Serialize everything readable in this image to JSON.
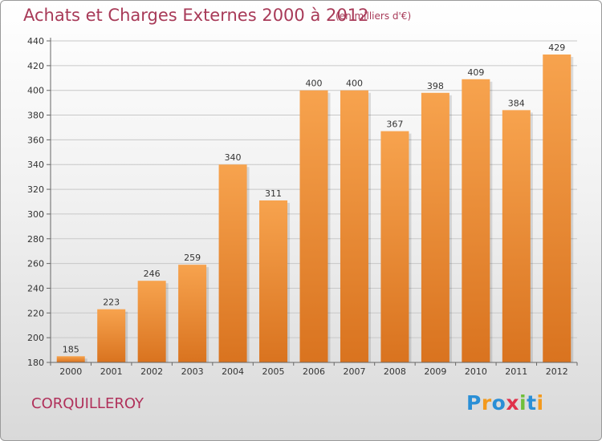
{
  "title": "Achats et Charges Externes 2000 à 2012",
  "subtitle": "(en milliers d'€)",
  "commune": "CORQUILLEROY",
  "logo": {
    "letters": [
      "P",
      "r",
      "o",
      "x",
      "i",
      "t",
      "i"
    ],
    "colors": [
      "#2a8fd6",
      "#f39a1e",
      "#2a8fd6",
      "#e0324b",
      "#6fbf3a",
      "#2a8fd6",
      "#f39a1e"
    ]
  },
  "colors": {
    "bar_light": "#f7a34e",
    "bar_dark": "#d9731f",
    "title": "#a83a58"
  },
  "chart_data": {
    "type": "bar",
    "categories": [
      "2000",
      "2001",
      "2002",
      "2003",
      "2004",
      "2005",
      "2006",
      "2007",
      "2008",
      "2009",
      "2010",
      "2011",
      "2012"
    ],
    "values": [
      185,
      223,
      246,
      259,
      340,
      311,
      400,
      400,
      367,
      398,
      409,
      384,
      429
    ],
    "ylim": [
      180,
      440
    ],
    "yticks": [
      180,
      200,
      220,
      240,
      260,
      280,
      300,
      320,
      340,
      360,
      380,
      400,
      420,
      440
    ],
    "grid": true,
    "xlabel": "",
    "ylabel": ""
  }
}
